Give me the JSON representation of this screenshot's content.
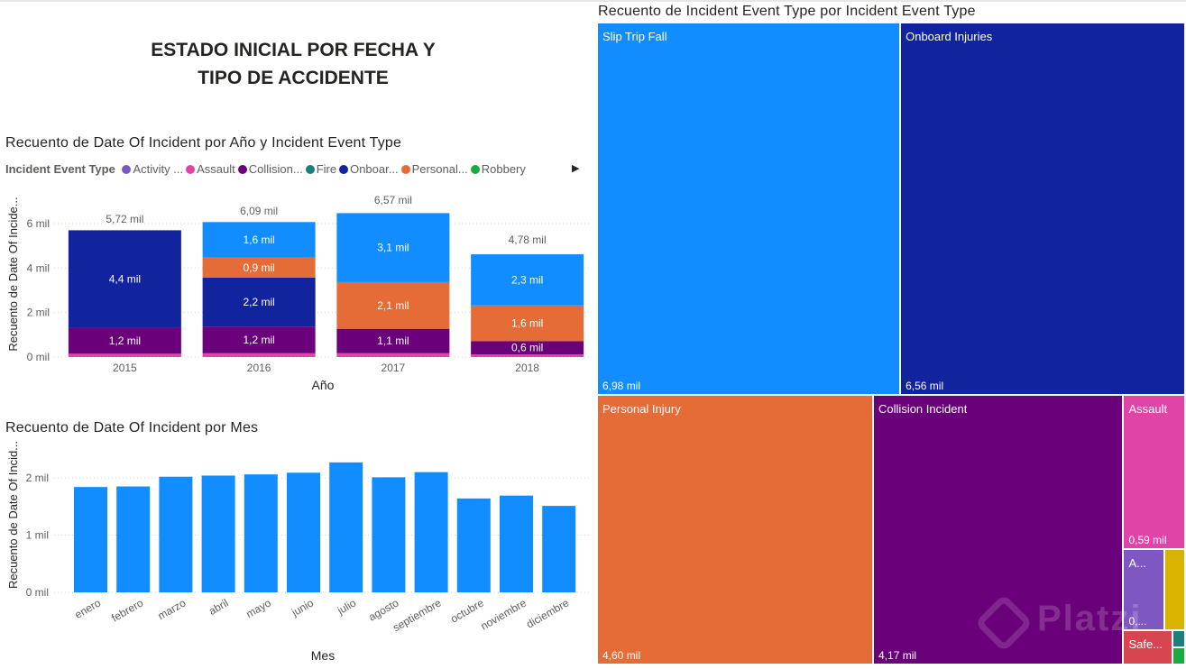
{
  "page": {
    "title_line1": "ESTADO INICIAL POR FECHA Y",
    "title_line2": "TIPO DE ACCIDENTE"
  },
  "colors": {
    "activity": "#7e57c2",
    "assault": "#e044a7",
    "collision": "#6b007b",
    "fire": "#1a7f7f",
    "onboard": "#12239e",
    "personal": "#e66c37",
    "robbery": "#1aab40",
    "slip": "#118dff",
    "safety": "#d64550",
    "other_yellow": "#d9b300",
    "grid": "#d8d8d8",
    "axis_text": "#605e5c"
  },
  "legend": {
    "title": "Incident Event Type",
    "more_icon": "chevron-right-icon",
    "items": [
      {
        "label": "Activity ...",
        "color": "#7e57c2"
      },
      {
        "label": "Assault",
        "color": "#e044a7"
      },
      {
        "label": "Collision...",
        "color": "#6b007b"
      },
      {
        "label": "Fire",
        "color": "#1a7f7f"
      },
      {
        "label": "Onboar...",
        "color": "#12239e"
      },
      {
        "label": "Personal...",
        "color": "#e66c37"
      },
      {
        "label": "Robbery",
        "color": "#1aab40"
      }
    ]
  },
  "chart_data": [
    {
      "type": "bar",
      "stacked": true,
      "title": "Recuento de Date Of Incident por Año y Incident Event Type",
      "xlabel": "Año",
      "ylabel": "Recuento de Date Of Incide...",
      "ylim": [
        0,
        7
      ],
      "yticks": [
        0,
        2,
        4,
        6
      ],
      "ytick_labels": [
        "0 mil",
        "2 mil",
        "4 mil",
        "6 mil"
      ],
      "grid": true,
      "categories": [
        "2015",
        "2016",
        "2017",
        "2018"
      ],
      "totals": [
        5.72,
        6.09,
        6.57,
        4.78
      ],
      "total_labels": [
        "5,72 mil",
        "6,09 mil",
        "6,57 mil",
        "4,78 mil"
      ],
      "series": [
        {
          "name": "Assault",
          "color": "#e044a7",
          "values": [
            0.15,
            0.17,
            0.17,
            0.12
          ],
          "labels": [
            "",
            "",
            "",
            ""
          ]
        },
        {
          "name": "Collision Incident",
          "color": "#6b007b",
          "values": [
            1.15,
            1.2,
            1.1,
            0.6
          ],
          "labels": [
            "1,2 mil",
            "1,2 mil",
            "1,1 mil",
            "0,6 mil"
          ]
        },
        {
          "name": "Onboard Injuries",
          "color": "#12239e",
          "values": [
            4.4,
            2.2,
            0.0,
            0.0
          ],
          "labels": [
            "4,4 mil",
            "2,2 mil",
            "",
            ""
          ]
        },
        {
          "name": "Personal Injury",
          "color": "#e66c37",
          "values": [
            0.0,
            0.9,
            2.1,
            1.6
          ],
          "labels": [
            "",
            "0,9 mil",
            "2,1 mil",
            "1,6 mil"
          ]
        },
        {
          "name": "Slip Trip Fall",
          "color": "#118dff",
          "values": [
            0.0,
            1.6,
            3.1,
            2.3
          ],
          "labels": [
            "",
            "1,6 mil",
            "3,1 mil",
            "2,3 mil"
          ]
        }
      ]
    },
    {
      "type": "bar",
      "title": "Recuento de Date Of Incident por Mes",
      "xlabel": "Mes",
      "ylabel": "Recuento de Date Of Incid...",
      "ylim": [
        0,
        2.5
      ],
      "yticks": [
        0,
        1,
        2
      ],
      "ytick_labels": [
        "0 mil",
        "1 mil",
        "2 mil"
      ],
      "grid": true,
      "color": "#118dff",
      "categories": [
        "enero",
        "febrero",
        "marzo",
        "abril",
        "mayo",
        "junio",
        "julio",
        "agosto",
        "septiembre",
        "octubre",
        "noviembre",
        "diciembre"
      ],
      "values": [
        1.84,
        1.85,
        2.02,
        2.04,
        2.06,
        2.09,
        2.27,
        2.01,
        2.1,
        1.64,
        1.69,
        1.51
      ]
    },
    {
      "type": "treemap",
      "title": "Recuento de Incident Event Type por Incident Event Type",
      "nodes": [
        {
          "name": "Slip Trip Fall",
          "value": 6.98,
          "value_label": "6,98 mil",
          "color": "#118dff"
        },
        {
          "name": "Onboard Injuries",
          "value": 6.56,
          "value_label": "6,56 mil",
          "color": "#12239e"
        },
        {
          "name": "Personal Injury",
          "value": 4.6,
          "value_label": "4,60 mil",
          "color": "#e66c37"
        },
        {
          "name": "Collision Incident",
          "value": 4.17,
          "value_label": "4,17 mil",
          "color": "#6b007b"
        },
        {
          "name": "Assault",
          "value": 0.59,
          "value_label": "0,59 mil",
          "color": "#e044a7"
        },
        {
          "name": "A...",
          "value": 0.2,
          "value_label": "0,...",
          "color": "#7e57c2"
        },
        {
          "name": "",
          "value": 0.1,
          "value_label": "",
          "color": "#d9b300"
        },
        {
          "name": "Safe...",
          "value": 0.1,
          "value_label": "",
          "color": "#d64550"
        },
        {
          "name": "",
          "value": 0.02,
          "value_label": "",
          "color": "#1a7f7f"
        },
        {
          "name": "",
          "value": 0.02,
          "value_label": "",
          "color": "#1aab40"
        }
      ]
    }
  ],
  "watermark": "Platzi"
}
